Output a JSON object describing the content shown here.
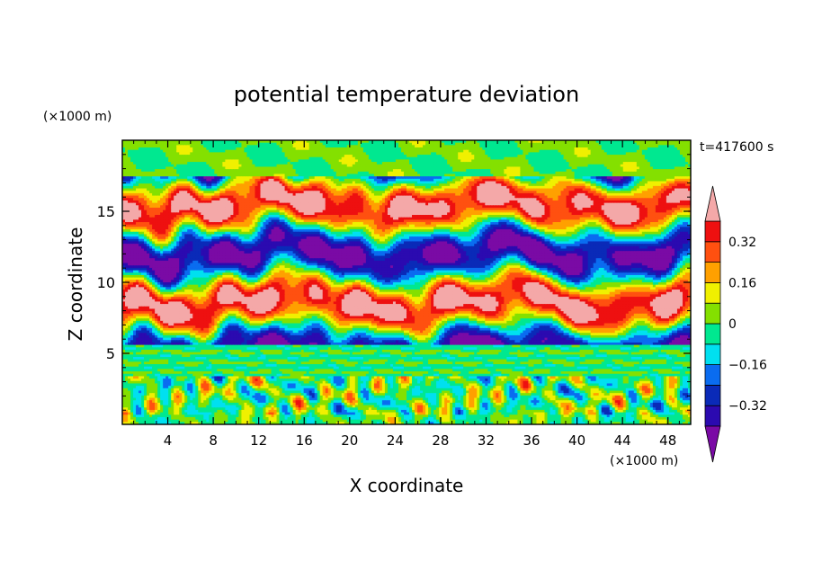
{
  "chart_data": {
    "type": "heatmap",
    "title": "potential temperature deviation",
    "xlabel": "X coordinate",
    "ylabel": "Z coordinate",
    "x_unit": "(×1000 m)",
    "y_unit": "(×1000 m)",
    "time_label": "t=417600 s",
    "xlim": [
      0,
      50
    ],
    "ylim": [
      0,
      20
    ],
    "x_ticks": [
      "4",
      "8",
      "12",
      "16",
      "20",
      "24",
      "28",
      "32",
      "36",
      "40",
      "44",
      "48"
    ],
    "y_ticks": [
      "5",
      "10",
      "15"
    ],
    "colorbar": {
      "labels": [
        "0.32",
        "0.16",
        "0",
        "-0.16",
        "-0.32"
      ],
      "levels": [
        -0.4,
        -0.32,
        -0.24,
        -0.16,
        -0.08,
        0,
        0.08,
        0.16,
        0.24,
        0.32,
        0.4
      ],
      "colors": [
        "#7a0aa5",
        "#2b0ab0",
        "#0a2ab8",
        "#0a6cf0",
        "#00e0f0",
        "#00e890",
        "#84e000",
        "#f0f000",
        "#ffa000",
        "#ff5010",
        "#ee1010",
        "#f4a8a8"
      ]
    },
    "bands": [
      {
        "z0": 0.0,
        "z1": 3.4,
        "pattern": "turbulent-convective"
      },
      {
        "z0": 3.4,
        "z1": 5.6,
        "pattern": "near-zero-stripes"
      },
      {
        "z0": 5.6,
        "z1": 17.5,
        "pattern": "layered-alternating"
      },
      {
        "z0": 17.5,
        "z1": 20.0,
        "pattern": "near-zero-waves"
      }
    ]
  }
}
